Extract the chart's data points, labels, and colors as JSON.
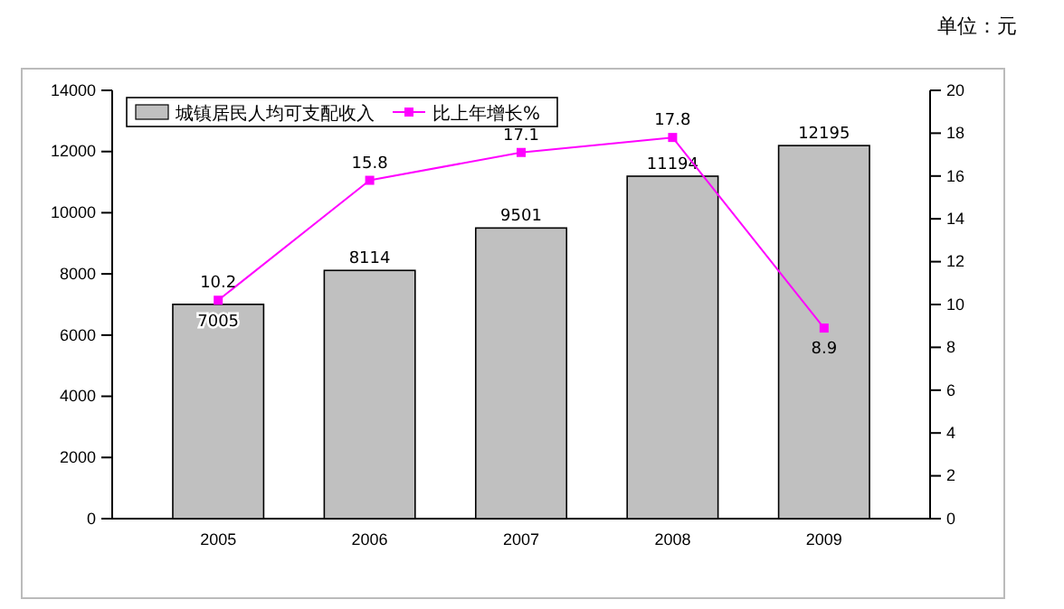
{
  "chart_data": {
    "type": "bar",
    "categories": [
      "2005",
      "2006",
      "2007",
      "2008",
      "2009"
    ],
    "series": [
      {
        "name": "城镇居民人均可支配收入",
        "color": "#c0c0c0",
        "values": [
          7005,
          8114,
          9501,
          11194,
          12195
        ]
      },
      {
        "name": "比上年增长%",
        "type": "line",
        "axis": "y2",
        "color": "#ff00ff",
        "values": [
          10.2,
          15.8,
          17.1,
          17.8,
          8.9
        ],
        "marker": "square"
      }
    ],
    "ylim": [
      0,
      14000
    ],
    "yticks": [
      0,
      2000,
      4000,
      6000,
      8000,
      10000,
      12000,
      14000
    ],
    "y2lim": [
      0,
      20
    ],
    "y2ticks": [
      0,
      2,
      4,
      6,
      8,
      10,
      12,
      14,
      16,
      18,
      20
    ],
    "data_labels": true,
    "legend": "top left",
    "grid": false,
    "annotations": [
      "单位：元"
    ]
  }
}
